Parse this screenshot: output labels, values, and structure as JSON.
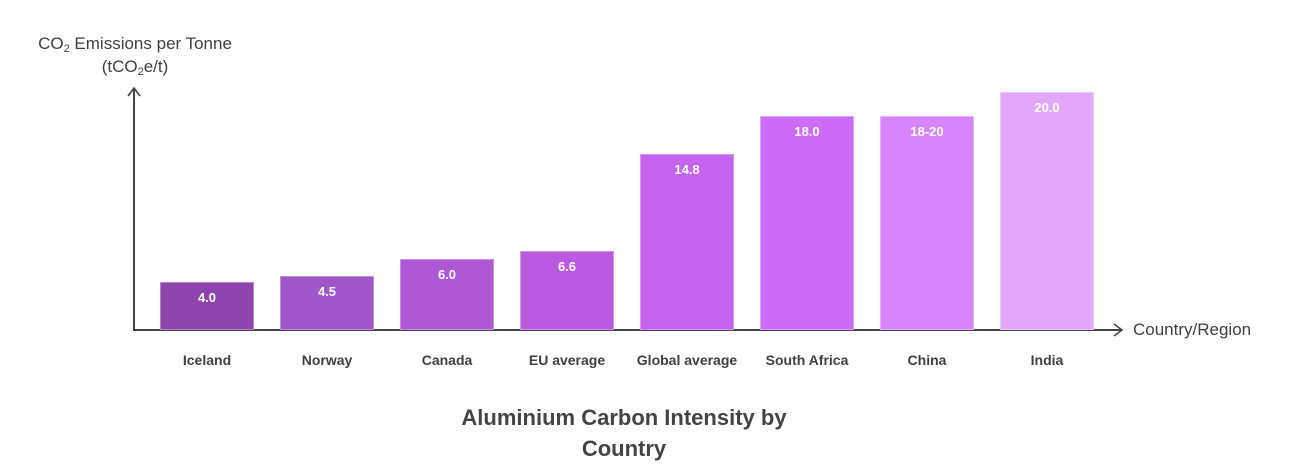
{
  "chart_data": {
    "type": "bar",
    "title": "Aluminium Carbon Intensity by Country",
    "xlabel": "Country/Region",
    "ylabel": "CO₂ Emissions per Tonne (tCO₂e/t)",
    "categories": [
      "Iceland",
      "Norway",
      "Canada",
      "EU average",
      "Global average",
      "South Africa",
      "China",
      "India"
    ],
    "values": [
      4.0,
      4.5,
      6.0,
      6.6,
      14.8,
      18.0,
      18.0,
      20.0
    ],
    "value_labels": [
      "4.0",
      "4.5",
      "6.0",
      "6.6",
      "14.8",
      "18.0",
      "18-20",
      "20.0"
    ],
    "colors": [
      "#8e44ad",
      "#a055c9",
      "#ae58d6",
      "#b95ae0",
      "#c463ee",
      "#cc6cf8",
      "#d884fa",
      "#e2a6fb"
    ],
    "grid": false,
    "legend": "none",
    "ylim": [
      0,
      21
    ]
  },
  "labels": {
    "y_axis_line1_prefix": "CO",
    "y_axis_line1_sub": "2",
    "y_axis_line1_suffix": " Emissions per Tonne",
    "y_axis_line2_prefix": "(tCO",
    "y_axis_line2_sub": "2",
    "y_axis_line2_suffix": "e/t)",
    "x_axis": "Country/Region",
    "title_line1": "Aluminium Carbon Intensity by",
    "title_line2": "Country"
  }
}
